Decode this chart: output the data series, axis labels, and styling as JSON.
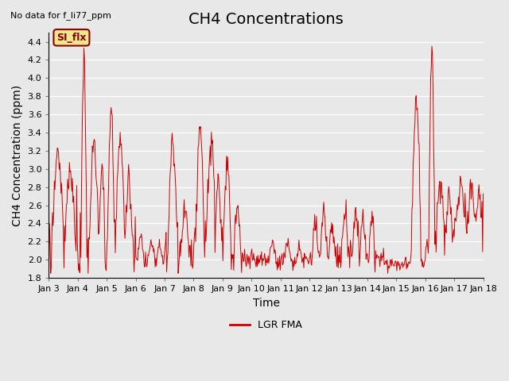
{
  "title": "CH4 Concentrations",
  "xlabel": "Time",
  "ylabel": "CH4 Concentration (ppm)",
  "top_left_text": "No data for f_li77_ppm",
  "legend_label": "LGR FMA",
  "legend_color": "#cc0000",
  "line_color": "#cc0000",
  "background_color": "#e8e8e8",
  "ylim": [
    1.8,
    4.5
  ],
  "yticks": [
    1.8,
    2.0,
    2.2,
    2.4,
    2.6,
    2.8,
    3.0,
    3.2,
    3.4,
    3.6,
    3.8,
    4.0,
    4.2,
    4.4
  ],
  "xtick_labels": [
    "Jan 3",
    "Jan 4",
    "Jan 5",
    "Jan 6",
    "Jan 7",
    "Jan 8",
    "Jan 9",
    "Jan 10",
    "Jan 11",
    "Jan 12",
    "Jan 13",
    "Jan 14",
    "Jan 15",
    "Jan 16",
    "Jan 17",
    "Jan 18"
  ],
  "annotation_box": {
    "text": "SI_flx",
    "facecolor": "#f0e68c",
    "edgecolor": "#8b0000",
    "textcolor": "#8b0000"
  },
  "grid_color": "#ffffff",
  "title_fontsize": 14,
  "axis_label_fontsize": 10,
  "tick_fontsize": 8
}
